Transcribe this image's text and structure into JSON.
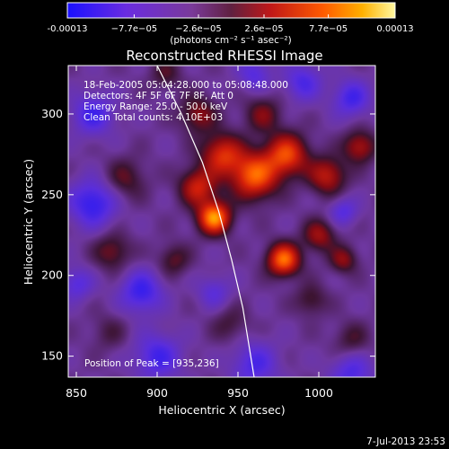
{
  "chart_data": {
    "type": "heatmap",
    "title": "Reconstructed RHESSI Image",
    "xlabel": "Heliocentric X (arcsec)",
    "ylabel": "Heliocentric Y (arcsec)",
    "xlim": [
      845,
      1035
    ],
    "ylim": [
      137,
      330
    ],
    "x_ticks": [
      850,
      900,
      950,
      1000
    ],
    "y_ticks": [
      150,
      200,
      250,
      300
    ],
    "colorbar": {
      "min": -0.00013,
      "max": 0.00013,
      "tick_values": [
        -0.00013,
        -7.7e-05,
        -2.6e-05,
        2.6e-05,
        7.7e-05,
        0.00013
      ],
      "tick_labels": [
        "-0.00013",
        "−7.7e−05",
        "−2.6e−05",
        "2.6e−05",
        "7.7e−05",
        "0.00013"
      ],
      "units_label": "(photons cm⁻² s⁻¹ asec⁻²)"
    },
    "annotations": [
      "18-Feb-2005 05:04:28.000 to 05:08:48.000",
      "Detectors: 4F 5F 6F 7F 8F, Att 0",
      "Energy Range: 25.0 - 50.0 keV",
      "Clean     Total counts: 4.10E+03"
    ],
    "peak_label": "Position of Peak = [935,236]",
    "peak": [
      935,
      236
    ],
    "blobs": [
      {
        "x": 935,
        "y": 236,
        "amp": 1.0,
        "s": 7
      },
      {
        "x": 978,
        "y": 210,
        "amp": 0.9,
        "s": 7
      },
      {
        "x": 960,
        "y": 262,
        "amp": 0.85,
        "s": 10
      },
      {
        "x": 980,
        "y": 275,
        "amp": 0.75,
        "s": 9
      },
      {
        "x": 940,
        "y": 275,
        "amp": 0.65,
        "s": 9
      },
      {
        "x": 1005,
        "y": 262,
        "amp": 0.55,
        "s": 8
      },
      {
        "x": 925,
        "y": 255,
        "amp": 0.6,
        "s": 8
      },
      {
        "x": 1000,
        "y": 225,
        "amp": 0.45,
        "s": 7
      },
      {
        "x": 1025,
        "y": 280,
        "amp": 0.5,
        "s": 7
      },
      {
        "x": 925,
        "y": 300,
        "amp": 0.4,
        "s": 8
      },
      {
        "x": 965,
        "y": 300,
        "amp": 0.35,
        "s": 8
      },
      {
        "x": 880,
        "y": 260,
        "amp": 0.3,
        "s": 9
      },
      {
        "x": 872,
        "y": 215,
        "amp": 0.35,
        "s": 8
      },
      {
        "x": 910,
        "y": 210,
        "amp": 0.3,
        "s": 7
      },
      {
        "x": 1015,
        "y": 210,
        "amp": 0.4,
        "s": 6
      },
      {
        "x": 995,
        "y": 185,
        "amp": 0.28,
        "s": 7
      },
      {
        "x": 945,
        "y": 170,
        "amp": 0.22,
        "s": 8
      },
      {
        "x": 870,
        "y": 165,
        "amp": 0.18,
        "s": 8
      },
      {
        "x": 1020,
        "y": 160,
        "amp": 0.25,
        "s": 8
      },
      {
        "x": 905,
        "y": 325,
        "amp": 0.25,
        "s": 7
      },
      {
        "x": 860,
        "y": 245,
        "amp": -0.55,
        "s": 10
      },
      {
        "x": 860,
        "y": 300,
        "amp": -0.45,
        "s": 9
      },
      {
        "x": 890,
        "y": 190,
        "amp": -0.5,
        "s": 9
      },
      {
        "x": 900,
        "y": 150,
        "amp": -0.45,
        "s": 10
      },
      {
        "x": 960,
        "y": 145,
        "amp": -0.4,
        "s": 10
      },
      {
        "x": 1020,
        "y": 140,
        "amp": -0.4,
        "s": 9
      },
      {
        "x": 1015,
        "y": 240,
        "amp": -0.35,
        "s": 6
      },
      {
        "x": 1020,
        "y": 310,
        "amp": -0.45,
        "s": 8
      },
      {
        "x": 990,
        "y": 320,
        "amp": -0.4,
        "s": 8
      },
      {
        "x": 960,
        "y": 325,
        "amp": -0.35,
        "s": 7
      },
      {
        "x": 850,
        "y": 195,
        "amp": -0.35,
        "s": 7
      },
      {
        "x": 935,
        "y": 190,
        "amp": -0.3,
        "s": 7
      }
    ],
    "limb": [
      [
        900,
        330
      ],
      [
        915,
        300
      ],
      [
        928,
        270
      ],
      [
        938,
        240
      ],
      [
        946,
        210
      ],
      [
        953,
        180
      ],
      [
        960,
        137
      ]
    ]
  },
  "timestamp": "7-Jul-2013 23:53"
}
